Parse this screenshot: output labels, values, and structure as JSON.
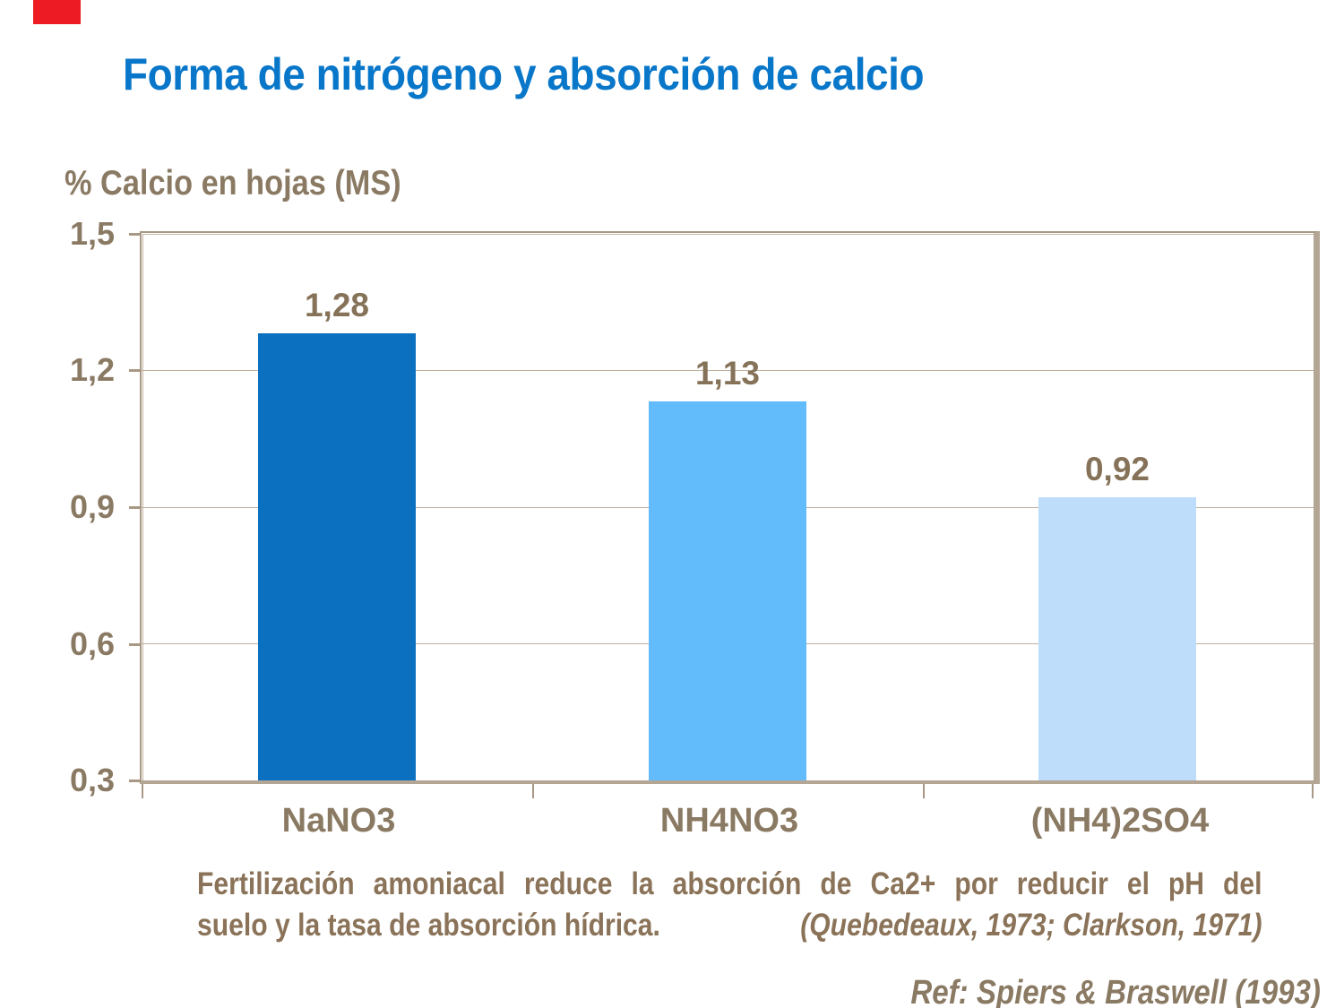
{
  "slide": {
    "title": "Forma de nitrógeno y absorción de calcio"
  },
  "colors": {
    "title_blue": "#0977C9",
    "axis_text_brown": "#8A7A63",
    "footer_brown": "#8A7358",
    "frame_tan": "#B4A695",
    "marker_red": "#ED1C24"
  },
  "chart_data": {
    "type": "bar",
    "title": "Forma de nitrógeno y absorción de calcio",
    "axis_title": "% Calcio en hojas (MS)",
    "xlabel": "",
    "ylabel": "% Calcio en hojas (MS)",
    "categories": [
      "NaNO3",
      "NH4NO3",
      "(NH4)2SO4"
    ],
    "values": [
      1.28,
      1.13,
      0.92
    ],
    "value_labels": [
      "1,28",
      "1,13",
      "0,92"
    ],
    "y_ticks": [
      "1,5",
      "1,2",
      "0,9",
      "0,6",
      "0,3"
    ],
    "y_tick_values": [
      1.5,
      1.2,
      0.9,
      0.6,
      0.3
    ],
    "ylim": [
      0.3,
      1.5
    ],
    "bar_colors": [
      "#0B70C0",
      "#62BBFB",
      "#BDDDFA"
    ],
    "grid": true,
    "legend": false
  },
  "footer": {
    "line1": "Fertilización amoniacal reduce la absorción de Ca2+ por reducir el pH del",
    "line2": "suelo y la tasa de absorción hídrica.",
    "citation": "(Quebedeaux, 1973; Clarkson, 1971)",
    "reference": "Ref: Spiers & Braswell (1993)"
  }
}
